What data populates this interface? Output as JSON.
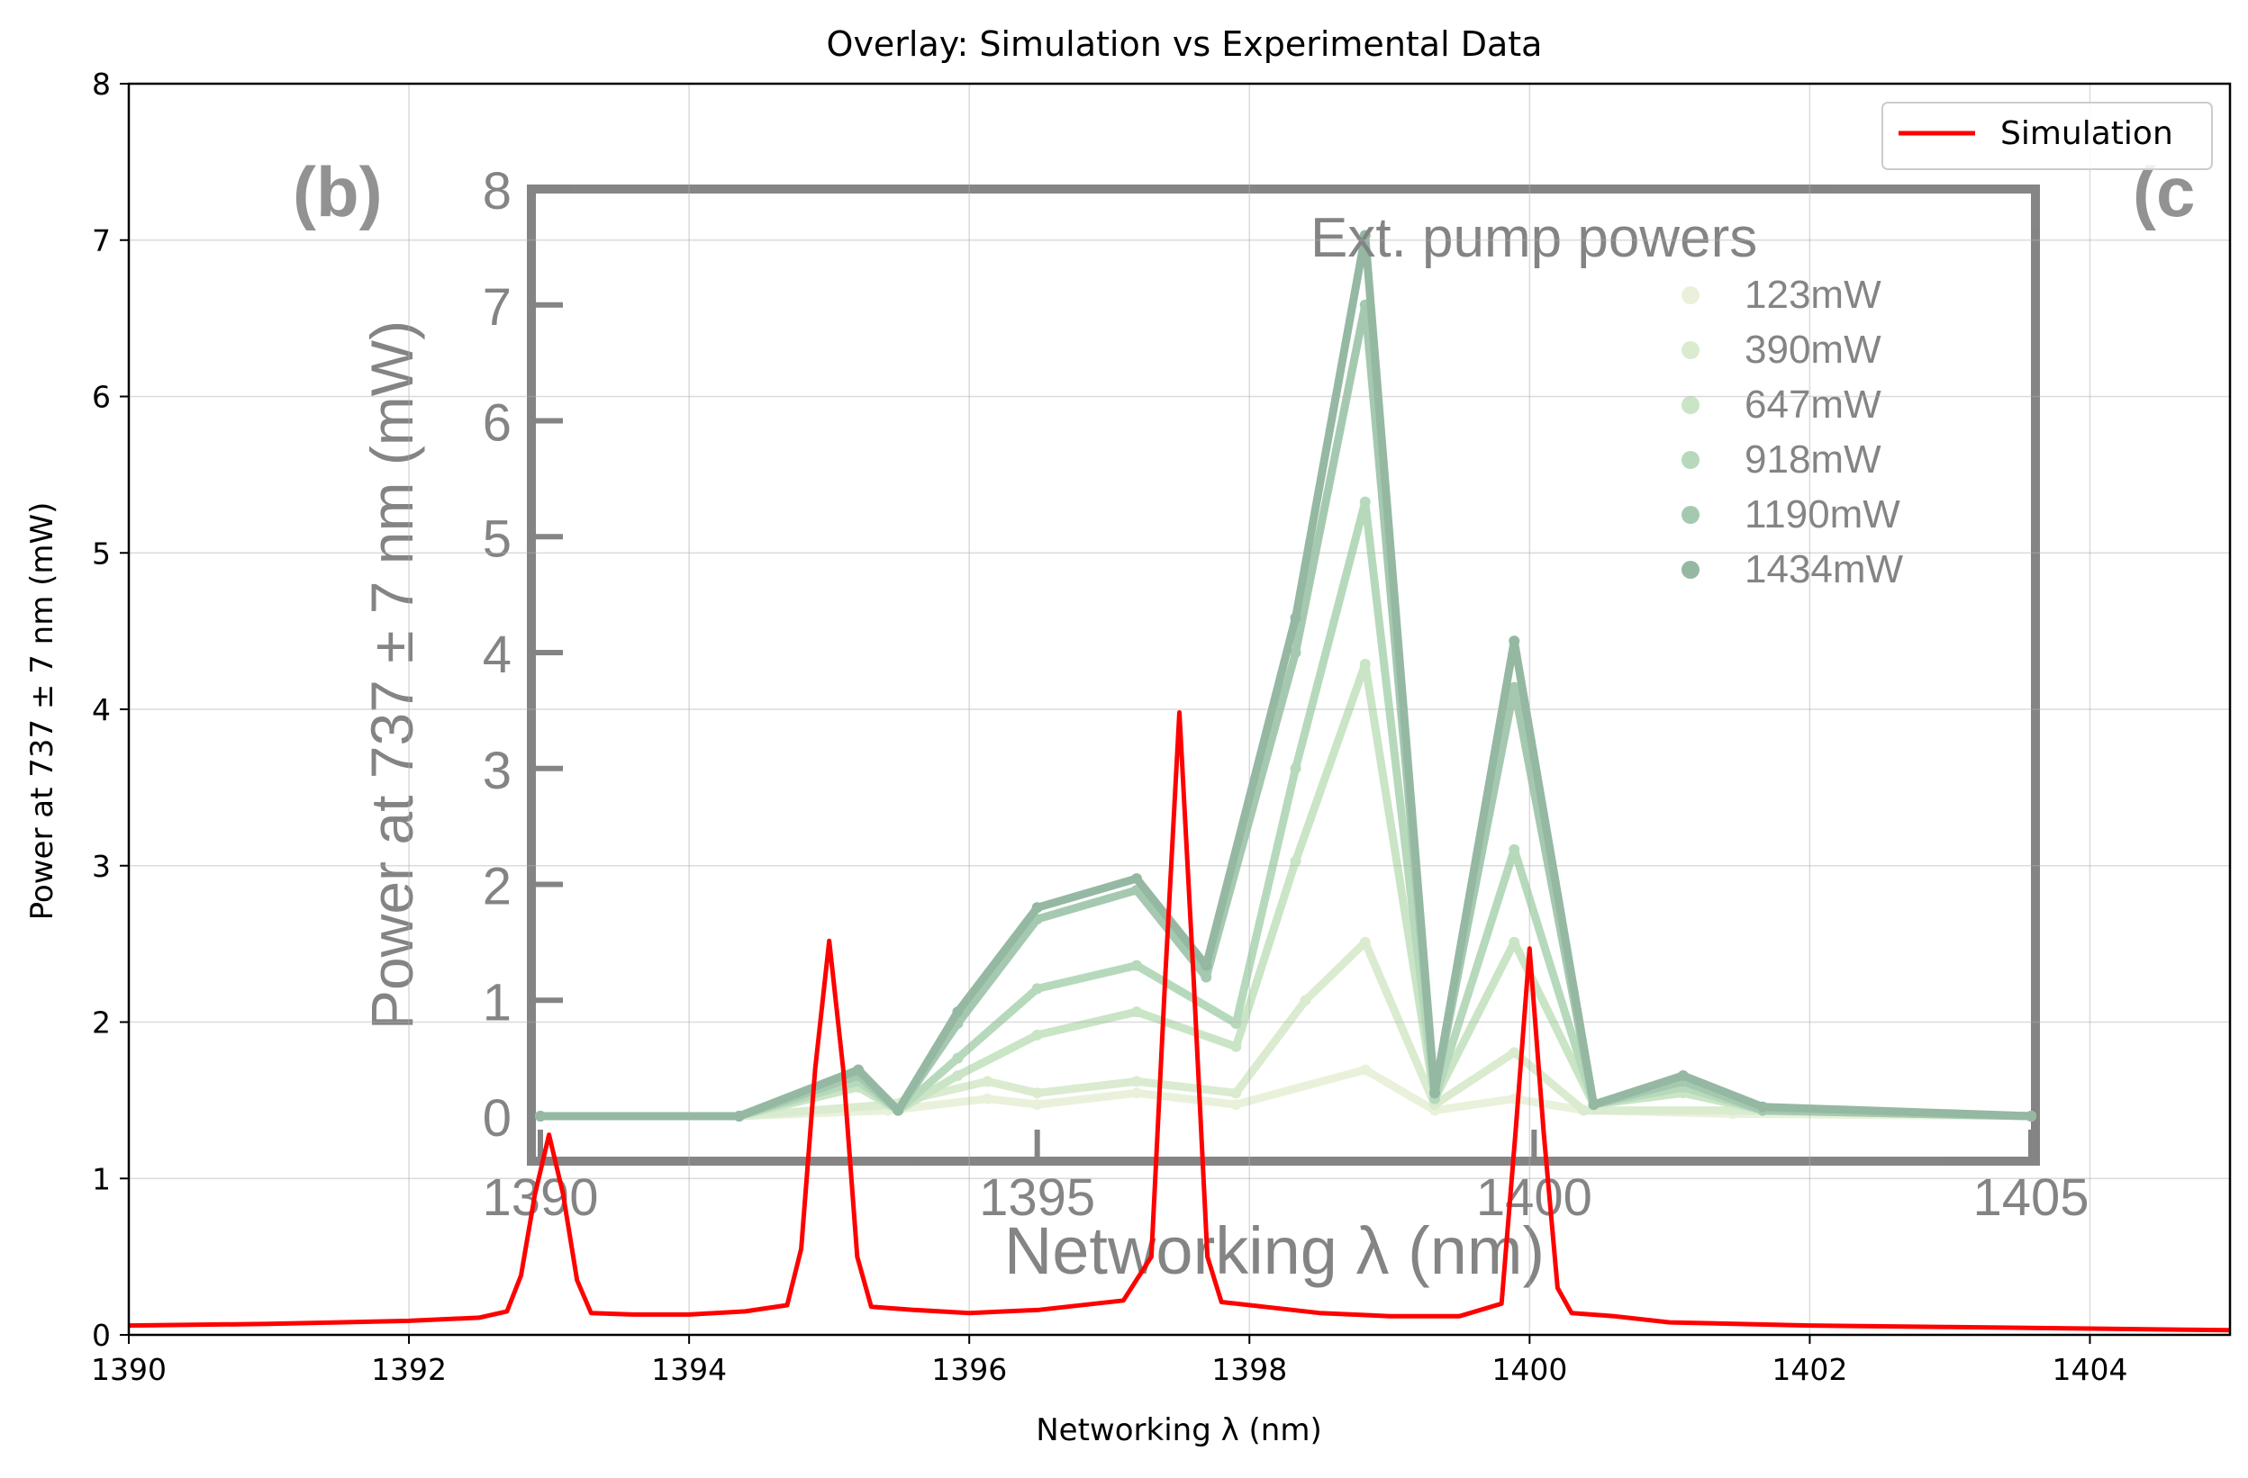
{
  "chart_data": {
    "type": "line",
    "title": "Overlay: Simulation vs Experimental Data",
    "xlabel": "Networking λ (nm)",
    "ylabel": "Power at 737 ± 7 nm (mW)",
    "xlim": [
      1390,
      1405
    ],
    "ylim": [
      0,
      8
    ],
    "xticks": [
      "1390",
      "1392",
      "1394",
      "1396",
      "1398",
      "1400",
      "1402",
      "1404"
    ],
    "yticks": [
      "0",
      "1",
      "2",
      "3",
      "4",
      "5",
      "6",
      "7",
      "8"
    ],
    "grid": true,
    "legend_position": "top-right",
    "series": [
      {
        "name": "Simulation",
        "color": "#ff0000",
        "x": [
          1390.0,
          1391.0,
          1392.0,
          1392.5,
          1392.7,
          1392.8,
          1392.9,
          1393.0,
          1393.1,
          1393.2,
          1393.3,
          1393.6,
          1394.0,
          1394.4,
          1394.7,
          1394.8,
          1394.9,
          1395.0,
          1395.1,
          1395.2,
          1395.3,
          1395.6,
          1396.0,
          1396.5,
          1397.1,
          1397.3,
          1397.4,
          1397.5,
          1397.6,
          1397.7,
          1397.8,
          1398.1,
          1398.5,
          1399.0,
          1399.5,
          1399.8,
          1399.9,
          1400.0,
          1400.1,
          1400.2,
          1400.3,
          1400.6,
          1401.0,
          1402.0,
          1403.0,
          1404.0,
          1405.0
        ],
        "y": [
          0.06,
          0.07,
          0.09,
          0.11,
          0.15,
          0.38,
          0.9,
          1.28,
          0.9,
          0.35,
          0.14,
          0.13,
          0.13,
          0.15,
          0.19,
          0.55,
          1.7,
          2.52,
          1.7,
          0.5,
          0.18,
          0.16,
          0.14,
          0.16,
          0.22,
          0.5,
          2.3,
          3.98,
          2.3,
          0.5,
          0.21,
          0.18,
          0.14,
          0.12,
          0.12,
          0.2,
          1.3,
          2.47,
          1.3,
          0.3,
          0.14,
          0.12,
          0.08,
          0.06,
          0.05,
          0.04,
          0.03
        ]
      }
    ],
    "background_inset": {
      "panel_labels": [
        "(b)",
        "(c"
      ],
      "title": "Ext. pump powers",
      "xlabel": "Networking λ (nm)",
      "ylabel": "Power at 737 ± 7 nm (mW)",
      "xticks": [
        "1390",
        "1395",
        "1400",
        "1405"
      ],
      "yticks": [
        "0",
        "1",
        "2",
        "3",
        "4",
        "5",
        "6",
        "7",
        "8"
      ],
      "xlim": [
        1390,
        1405
      ],
      "ylim": [
        0,
        8
      ],
      "series": [
        {
          "name": "123mW",
          "color": "#dbe8c3",
          "x": [
            1390,
            1392,
            1393.5,
            1394.5,
            1395,
            1396,
            1397,
            1398.3,
            1399,
            1399.8,
            1400.5,
            1402,
            1405
          ],
          "y": [
            0,
            0,
            0.05,
            0.15,
            0.1,
            0.2,
            0.1,
            0.4,
            0.05,
            0.15,
            0.05,
            0.02,
            0
          ]
        },
        {
          "name": "390mW",
          "color": "#c3dfb0",
          "x": [
            1390,
            1392,
            1393.5,
            1394.5,
            1395,
            1396,
            1397,
            1397.7,
            1398.3,
            1399,
            1399.8,
            1400.5,
            1402,
            1405
          ],
          "y": [
            0,
            0,
            0.1,
            0.3,
            0.2,
            0.3,
            0.2,
            1.0,
            1.5,
            0.1,
            0.55,
            0.05,
            0.05,
            0
          ]
        },
        {
          "name": "647mW",
          "color": "#a6d4a0",
          "x": [
            1390,
            1392,
            1393.2,
            1393.6,
            1394.2,
            1395,
            1396,
            1397,
            1397.6,
            1398.3,
            1399,
            1399.8,
            1400.6,
            1401.5,
            1402.3,
            1405
          ],
          "y": [
            0,
            0,
            0.25,
            0.05,
            0.35,
            0.7,
            0.9,
            0.6,
            2.2,
            3.9,
            0.15,
            1.5,
            0.1,
            0.2,
            0.05,
            0
          ]
        },
        {
          "name": "918mW",
          "color": "#87c191",
          "x": [
            1390,
            1392,
            1393.2,
            1393.6,
            1394.2,
            1395,
            1396,
            1397,
            1397.6,
            1398.3,
            1399,
            1399.8,
            1400.6,
            1401.5,
            1402.3,
            1405
          ],
          "y": [
            0,
            0,
            0.3,
            0.05,
            0.5,
            1.1,
            1.3,
            0.8,
            3.0,
            5.3,
            0.15,
            2.3,
            0.1,
            0.25,
            0.05,
            0
          ]
        },
        {
          "name": "1190mW",
          "color": "#6aa67c",
          "x": [
            1390,
            1392,
            1393.2,
            1393.6,
            1394.2,
            1395,
            1396,
            1396.7,
            1397.6,
            1398.3,
            1399,
            1399.8,
            1400.6,
            1401.5,
            1402.3,
            1405
          ],
          "y": [
            0,
            0,
            0.35,
            0.05,
            0.8,
            1.7,
            1.95,
            1.2,
            4.0,
            7.0,
            0.2,
            3.7,
            0.1,
            0.3,
            0.05,
            0
          ]
        },
        {
          "name": "1434mW",
          "color": "#4f8a66",
          "x": [
            1390,
            1392,
            1393.2,
            1393.6,
            1394.2,
            1395,
            1396,
            1396.7,
            1397.6,
            1398.3,
            1399,
            1399.8,
            1400.6,
            1401.5,
            1402.3,
            1405
          ],
          "y": [
            0,
            0,
            0.4,
            0.05,
            0.9,
            1.8,
            2.05,
            1.3,
            4.3,
            7.6,
            0.2,
            4.1,
            0.1,
            0.35,
            0.08,
            0
          ]
        }
      ]
    }
  }
}
